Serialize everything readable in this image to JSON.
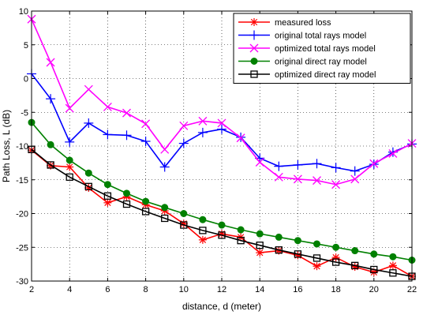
{
  "chart_data": {
    "type": "line",
    "xlabel": "distance, d (meter)",
    "ylabel": "Path Loss, L (dB)",
    "xlim": [
      2,
      22
    ],
    "ylim": [
      -30,
      10
    ],
    "xticks": [
      2,
      4,
      6,
      8,
      10,
      12,
      14,
      16,
      18,
      20,
      22
    ],
    "yticks": [
      10,
      5,
      0,
      -5,
      -10,
      -15,
      -20,
      -25,
      -30
    ],
    "grid": true,
    "legend_position": "top-right",
    "x": [
      2,
      3,
      4,
      5,
      6,
      7,
      8,
      9,
      10,
      11,
      12,
      13,
      14,
      15,
      16,
      17,
      18,
      19,
      20,
      21,
      22
    ],
    "series": [
      {
        "name": "measured loss",
        "color": "#ff0000",
        "marker": "asterisk",
        "values": [
          -10.6,
          -12.9,
          -13.1,
          -16.2,
          -18.4,
          -17.5,
          -18.7,
          -19.6,
          -21.5,
          -23.9,
          -23.0,
          -23.5,
          -25.8,
          -25.5,
          -26.2,
          -27.8,
          -26.5,
          -27.9,
          -28.7,
          -27.7,
          -29.3
        ]
      },
      {
        "name": "original total rays model",
        "color": "#0000ff",
        "marker": "plus",
        "values": [
          0.7,
          -3.0,
          -9.4,
          -6.6,
          -8.3,
          -8.4,
          -9.3,
          -13.1,
          -9.6,
          -8.0,
          -7.5,
          -8.7,
          -11.8,
          -13.0,
          -12.8,
          -12.6,
          -13.2,
          -13.7,
          -12.7,
          -10.9,
          -9.7
        ]
      },
      {
        "name": "optimized total rays model",
        "color": "#ff00ff",
        "marker": "x",
        "values": [
          8.8,
          2.4,
          -4.4,
          -1.6,
          -4.2,
          -5.1,
          -6.7,
          -10.5,
          -7.0,
          -6.3,
          -6.6,
          -8.8,
          -12.4,
          -14.6,
          -14.9,
          -15.1,
          -15.7,
          -14.9,
          -12.6,
          -11.1,
          -9.6
        ]
      },
      {
        "name": "original direct ray model",
        "color": "#008000",
        "marker": "circle",
        "values": [
          -6.5,
          -9.8,
          -12.1,
          -14.0,
          -15.7,
          -17.0,
          -18.2,
          -19.1,
          -20.0,
          -20.9,
          -21.7,
          -22.4,
          -23.0,
          -23.5,
          -24.0,
          -24.5,
          -25.0,
          -25.5,
          -26.0,
          -26.4,
          -26.9
        ]
      },
      {
        "name": "optimized direct ray model",
        "color": "#000000",
        "marker": "square",
        "values": [
          -10.5,
          -12.8,
          -14.6,
          -16.0,
          -17.4,
          -18.6,
          -19.7,
          -20.7,
          -21.7,
          -22.5,
          -23.2,
          -24.0,
          -24.7,
          -25.4,
          -26.0,
          -26.6,
          -27.2,
          -27.7,
          -28.3,
          -28.8,
          -29.3
        ]
      }
    ]
  }
}
